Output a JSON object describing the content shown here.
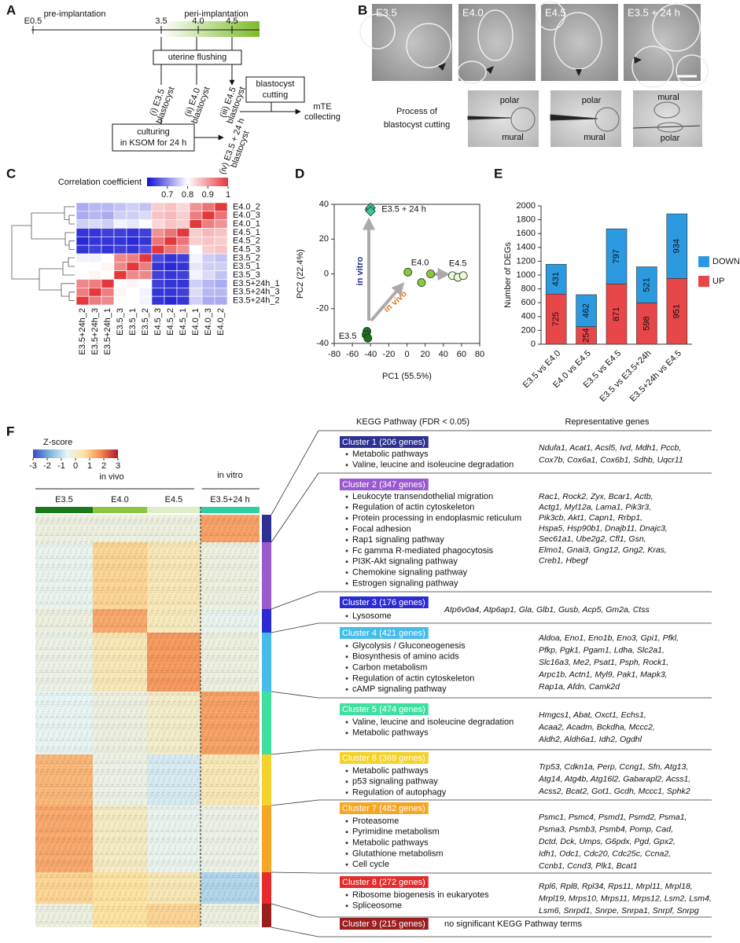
{
  "panel_a": {
    "label": "A",
    "pre": "pre-implantation",
    "peri": "peri-implantation",
    "timeline": [
      "E0.5",
      "3.5",
      "4.0",
      "4.5"
    ],
    "flushing": "uterine flushing",
    "samples": [
      [
        "(i) E3.5",
        "blastocyst"
      ],
      [
        "(ii) E4.0",
        "blastocyst"
      ],
      [
        "(iii) E4.5",
        "blastocyst"
      ],
      [
        "(iv) E3.5 + 24 h",
        "blastocyst"
      ]
    ],
    "culture": [
      "culturing",
      "in KSOM for 24 h"
    ],
    "cutting": [
      "blastocyst",
      "cutting"
    ],
    "collect": [
      "mTE",
      "collecting"
    ]
  },
  "panel_b": {
    "label": "B",
    "photos": [
      "E3.5",
      "E4.0",
      "E4.5",
      "E3.5 + 24 h"
    ],
    "process": [
      "Process of",
      "blastocyst cutting"
    ],
    "cut_photos": [
      [
        "polar",
        "mural"
      ],
      [
        "polar",
        "mural"
      ],
      [
        "mural",
        "polar"
      ]
    ]
  },
  "chart_data": [
    {
      "type": "heatmap",
      "panel": "C",
      "title": "Correlation coefficient",
      "rows": [
        "E4.0_2",
        "E4.0_3",
        "E4.0_1",
        "E4.5_1",
        "E4.5_2",
        "E4.5_3",
        "E3.5_2",
        "E3.5_1",
        "E3.5_3",
        "E3.5+24h_1",
        "E3.5+24h_3",
        "E3.5+24h_2"
      ],
      "columns": [
        "E3.5+24h_2",
        "E3.5+24h_3",
        "E3.5+24h_1",
        "E3.5_3",
        "E3.5_1",
        "E3.5_2",
        "E4.5_3",
        "E4.5_2",
        "E4.5_1",
        "E4.0_1",
        "E4.0_3",
        "E4.0_2"
      ],
      "values": [
        [
          0.73,
          0.74,
          0.74,
          0.75,
          0.76,
          0.75,
          0.85,
          0.86,
          0.84,
          0.91,
          0.94,
          1
        ],
        [
          0.73,
          0.74,
          0.73,
          0.76,
          0.76,
          0.77,
          0.86,
          0.87,
          0.85,
          0.93,
          1,
          0.94
        ],
        [
          0.76,
          0.77,
          0.76,
          0.79,
          0.78,
          0.8,
          0.84,
          0.86,
          0.85,
          1,
          0.93,
          0.91
        ],
        [
          0.63,
          0.63,
          0.64,
          0.64,
          0.63,
          0.64,
          0.91,
          0.94,
          1,
          0.85,
          0.87,
          0.86
        ],
        [
          0.62,
          0.63,
          0.63,
          0.63,
          0.62,
          0.63,
          0.94,
          1,
          0.94,
          0.85,
          0.86,
          0.85
        ],
        [
          0.63,
          0.64,
          0.63,
          0.64,
          0.63,
          0.65,
          1,
          0.94,
          0.91,
          0.8,
          0.85,
          0.86
        ],
        [
          0.79,
          0.79,
          0.8,
          0.92,
          0.93,
          1,
          0.65,
          0.63,
          0.64,
          0.79,
          0.76,
          0.75
        ],
        [
          0.8,
          0.8,
          0.81,
          0.92,
          1,
          0.93,
          0.63,
          0.62,
          0.63,
          0.78,
          0.76,
          0.76
        ],
        [
          0.8,
          0.81,
          0.8,
          1,
          0.92,
          0.92,
          0.64,
          0.63,
          0.64,
          0.79,
          0.77,
          0.75
        ],
        [
          0.92,
          0.93,
          1,
          0.8,
          0.81,
          0.8,
          0.64,
          0.63,
          0.63,
          0.76,
          0.74,
          0.73
        ],
        [
          0.93,
          1,
          0.93,
          0.81,
          0.8,
          0.79,
          0.63,
          0.63,
          0.64,
          0.77,
          0.74,
          0.74
        ],
        [
          1,
          0.93,
          0.92,
          0.8,
          0.8,
          0.79,
          0.63,
          0.62,
          0.63,
          0.76,
          0.73,
          0.73
        ]
      ],
      "clim": [
        0.6,
        1
      ],
      "cticks": [
        0.7,
        0.8,
        0.9,
        1
      ],
      "colors": [
        "#1010d0",
        "#ffffff",
        "#e3383c"
      ]
    },
    {
      "type": "scatter",
      "panel": "D",
      "xlabel": "PC1 (55.5%)",
      "ylabel": "PC2 (22.4%)",
      "xlim": [
        -80,
        80
      ],
      "xticks": [
        -80,
        -60,
        -40,
        -20,
        0,
        20,
        40,
        60,
        80
      ],
      "ylim": [
        -40,
        40
      ],
      "yticks": [
        -40,
        -20,
        0,
        20,
        40
      ],
      "series": [
        {
          "name": "E3.5 + 24 h",
          "color": "#3cc49a",
          "marker": "diamond",
          "x": [
            -41,
            -40,
            -40
          ],
          "values": [
            37,
            38,
            36
          ]
        },
        {
          "name": "E4.0",
          "color": "#8cc640",
          "marker": "circle",
          "x": [
            1,
            16,
            26
          ],
          "values": [
            1,
            -5,
            0
          ]
        },
        {
          "name": "E4.5",
          "color": "#eef6d8",
          "marker": "circle",
          "x": [
            50,
            56,
            62
          ],
          "values": [
            -1,
            -2,
            -1
          ]
        },
        {
          "name": "E3.5",
          "color": "#1e6e1e",
          "marker": "circle",
          "x": [
            -44,
            -45,
            -43
          ],
          "values": [
            -33,
            -35,
            -37
          ]
        }
      ],
      "annotations": [
        {
          "text": "in vitro",
          "color": "#1f2f8f"
        },
        {
          "text": "in vivo",
          "color": "#e07a1f"
        }
      ]
    },
    {
      "type": "bar",
      "panel": "E",
      "stacked": true,
      "ylabel": "Number of DEGs",
      "categories": [
        "E3.5 vs E4.0",
        "E4.0 vs E4.5",
        "E3.5 vs E4.5",
        "E3.5 vs E3.5+24h",
        "E3.5+24h vs E4.5"
      ],
      "series": [
        {
          "name": "UP",
          "color": "#e8474a",
          "values": [
            725,
            254,
            871,
            598,
            951
          ]
        },
        {
          "name": "DOWN",
          "color": "#2b9ae0",
          "values": [
            431,
            462,
            797,
            521,
            934
          ]
        }
      ],
      "ylim": [
        0,
        2000
      ],
      "yticks": [
        0,
        200,
        400,
        600,
        800,
        1000,
        1200,
        1400,
        1600,
        1800,
        2000
      ],
      "legend": "right"
    },
    {
      "type": "heatmap",
      "panel": "F",
      "title": "Z-score",
      "rows": [
        null,
        null,
        null,
        null,
        null,
        null,
        null,
        null,
        null
      ],
      "columns": [
        "E3.5",
        "E4.0",
        "E4.5",
        "E3.5+24 h"
      ],
      "column_groups": [
        "in vivo",
        "in vitro"
      ],
      "column_colors": [
        "#1a7a1a",
        "#8cc640",
        "#dcedc8",
        "#2fcf9f"
      ],
      "values": [
        [
          -0.3,
          -0.3,
          -0.3,
          1.5
        ],
        [
          -0.5,
          0.8,
          0.3,
          -0.3
        ],
        [
          -0.3,
          1.4,
          0.2,
          -0.5
        ],
        [
          -0.4,
          0.3,
          1.6,
          -0.3
        ],
        [
          -0.6,
          -0.3,
          0,
          1.5
        ],
        [
          1.2,
          -0.4,
          -0.8,
          0.3
        ],
        [
          1.4,
          0.1,
          -0.5,
          -0.4
        ],
        [
          0.8,
          0.6,
          0.3,
          -1.2
        ],
        [
          -0.3,
          0.6,
          0.8,
          -0.3
        ]
      ],
      "clim": [
        -3,
        3
      ],
      "cticks": [
        -3,
        -2,
        -1,
        0,
        1,
        2,
        3
      ],
      "colors": [
        "#3a4cc0",
        "#7ab5e0",
        "#e8f4f4",
        "#fde3a0",
        "#f5894f",
        "#b2182b"
      ]
    }
  ],
  "panel_f": {
    "label": "F",
    "kegg_title": "KEGG Pathway (FDR < 0.05)",
    "genes_title": "Representative genes",
    "clusters": [
      {
        "title": "Cluster 1 (206 genes)",
        "color": "#2e3192",
        "pathways": [
          "Metabolic pathways",
          "Valine, leucine and isoleucine degradation"
        ],
        "genes": [
          "Ndufa1, Acat1, Acsl5, Ivd, Mdh1, Pccb,",
          "Cox7b, Cox6a1, Cox6b1, Sdhb, Uqcr11"
        ]
      },
      {
        "title": "Cluster 2 (347 genes)",
        "color": "#9b59d0",
        "pathways": [
          "Leukocyte transendothelial migration",
          "Regulation of actin cytoskeleton",
          "Protein processing in endoplasmic reticulum",
          "Focal adhesion",
          "Rap1 signaling pathway",
          "Fc gamma R-mediated phagocytosis",
          "PI3K-Akt signaling pathway",
          "Chemokine signaling pathway",
          "Estrogen signaling pathway"
        ],
        "genes": [
          "Rac1, Rock2, Zyx, Bcar1, Actb,",
          "Actg1, Myl12a, Lama1, Pik3r3,",
          "Pik3cb, Akt1, Capn1, Rrbp1,",
          "Hspa5, Hsp90b1, Dnajb11, Dnajc3,",
          "Sec61a1, Ube2g2, Cfl1, Gsn,",
          "Elmo1, Gnai3, Gng12, Gng2, Kras,",
          "Creb1, Hbegf"
        ]
      },
      {
        "title": "Cluster 3 (176 genes)",
        "color": "#2b2bd6",
        "pathways": [
          "Lysosome"
        ],
        "genes": [
          "Atp6v0a4, Atp6ap1, Gla, Glb1, Gusb, Acp5, Gm2a, Ctss"
        ]
      },
      {
        "title": "Cluster 4 (421 genes)",
        "color": "#45bde8",
        "pathways": [
          "Glycolysis / Gluconeogenesis",
          "Biosynthesis of amino acids",
          "Carbon metabolism",
          "Regulation of actin cytoskeleton",
          "cAMP signaling pathway"
        ],
        "genes": [
          "Aldoa, Eno1, Eno1b, Eno3, Gpi1, Pfkl,",
          "Pfkp, Pgk1, Pgam1, Ldha, Slc2a1,",
          "Slc16a3, Me2, Psat1, Psph, Rock1,",
          "Arpc1b, Actn1, Myl9, Pak1, Mapk3,",
          "Rap1a, Afdn, Camk2d"
        ]
      },
      {
        "title": "Cluster 5 (474 genes)",
        "color": "#3ee0a0",
        "pathways": [
          "Valine, leucine and isoleucine degradation",
          "Metabolic pathways"
        ],
        "genes": [
          "Hmgcs1, Abat, Oxct1, Echs1,",
          "Acaa2, Acadm, Bckdha, Mccc2,",
          "Aldh2, Aldh6a1, Idh2, Ogdhl"
        ]
      },
      {
        "title": "Cluster 6 (369 genes)",
        "color": "#f4d22a",
        "pathways": [
          "Metabolic pathways",
          "p53 signaling pathway",
          "Regulation of autophagy"
        ],
        "genes": [
          "Trp53, Cdkn1a, Perp, Ccng1, Sfn, Atg13,",
          "Atg14, Atg4b, Atg16l2, Gabarapl2, Acss1,",
          "Acss2, Bcat2, Got1, Gcdh, Mccc1, Sphk2"
        ]
      },
      {
        "title": "Cluster 7 (482 genes)",
        "color": "#f5a623",
        "pathways": [
          "Proteasome",
          "Pyrimidine metabolism",
          "Metabolic pathways",
          "Glutathione metabolism",
          "Cell cycle"
        ],
        "genes": [
          "Psmc1, Psmc4, Psmd1, Psmd2, Psma1,",
          "Psma3, Psmb3, Psmb4, Pomp, Cad,",
          "Dctd, Dck, Umps, G6pdx, Pgd, Gpx2,",
          "Idh1, Odc1, Cdc20, Cdc25c, Ccna2,",
          "Ccnb1, Ccnd3, Plk1, Bcat1"
        ]
      },
      {
        "title": "Cluster 8 (272 genes)",
        "color": "#e52b2b",
        "pathways": [
          "Ribosome biogenesis in eukaryotes",
          "Spliceosome"
        ],
        "genes": [
          "Rpl6, Rpl8, Rpl34, Rps11, Mrpl11, Mrpl18,",
          "Mrpl19, Mrps10, Mrps11, Mrps12, Lsm2, Lsm4,",
          "Lsm6, Snrpd1, Snrpe, Snrpa1, Snrpf, Snrpg"
        ]
      },
      {
        "title": "Cluster 9 (215 genes)",
        "color": "#9a1f1f",
        "pathways": [],
        "note": "no significant KEGG Pathway terms"
      }
    ]
  }
}
